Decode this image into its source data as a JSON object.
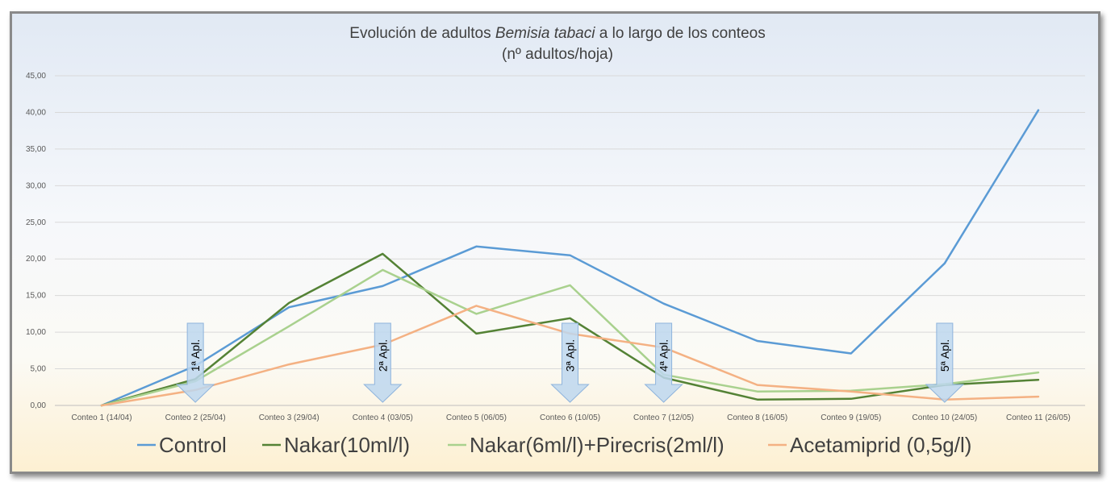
{
  "chart_data": {
    "type": "line",
    "title_pre": "Evolución de adultos ",
    "title_species": "Bemisia tabaci",
    "title_post": " a lo largo de los conteos",
    "subtitle": "(nº adultos/hoja)",
    "categories": [
      "Conteo 1 (14/04)",
      "Conteo 2 (25/04)",
      "Conteo 3 (29/04)",
      "Conteo 4 (03/05)",
      "Conteo 5 (06/05)",
      "Conteo 6 (10/05)",
      "Conteo 7 (12/05)",
      "Conteo 8 (16/05)",
      "Conteo 9 (19/05)",
      "Conteo 10 (24/05)",
      "Conteo 11 (26/05)"
    ],
    "yticks": [
      "0,00",
      "5,00",
      "10,00",
      "15,00",
      "20,00",
      "25,00",
      "30,00",
      "35,00",
      "40,00",
      "45,00"
    ],
    "ylim": [
      0,
      45
    ],
    "grid": true,
    "legend_position": "bottom",
    "series": [
      {
        "name": "Control",
        "color": "#5b9bd5",
        "values": [
          0.0,
          5.4,
          13.4,
          16.3,
          21.7,
          20.5,
          13.9,
          8.8,
          7.1,
          19.4,
          40.3
        ]
      },
      {
        "name": "Nakar(10ml/l)",
        "color": "#548235",
        "values": [
          0.0,
          3.6,
          14.0,
          20.7,
          9.8,
          11.9,
          3.8,
          0.8,
          0.9,
          2.8,
          3.5
        ]
      },
      {
        "name": "Nakar(6ml/l)+Pirecris(2ml/l)",
        "color": "#a9d18e",
        "values": [
          0.0,
          3.3,
          10.8,
          18.5,
          12.5,
          16.4,
          4.2,
          1.9,
          2.0,
          2.9,
          4.5
        ]
      },
      {
        "name": "Acetamiprid (0,5g/l)",
        "color": "#f4b183",
        "values": [
          0.0,
          2.1,
          5.6,
          8.3,
          13.6,
          9.8,
          7.9,
          2.8,
          1.9,
          0.8,
          1.2
        ]
      }
    ],
    "annotations": [
      {
        "label": "1ª Apl.",
        "category_index": 1
      },
      {
        "label": "2ª Apl.",
        "category_index": 3
      },
      {
        "label": "3ª Apl.",
        "category_index": 5
      },
      {
        "label": "4ª Apl.",
        "category_index": 6
      },
      {
        "label": "5ª Apl.",
        "category_index": 9
      }
    ]
  }
}
